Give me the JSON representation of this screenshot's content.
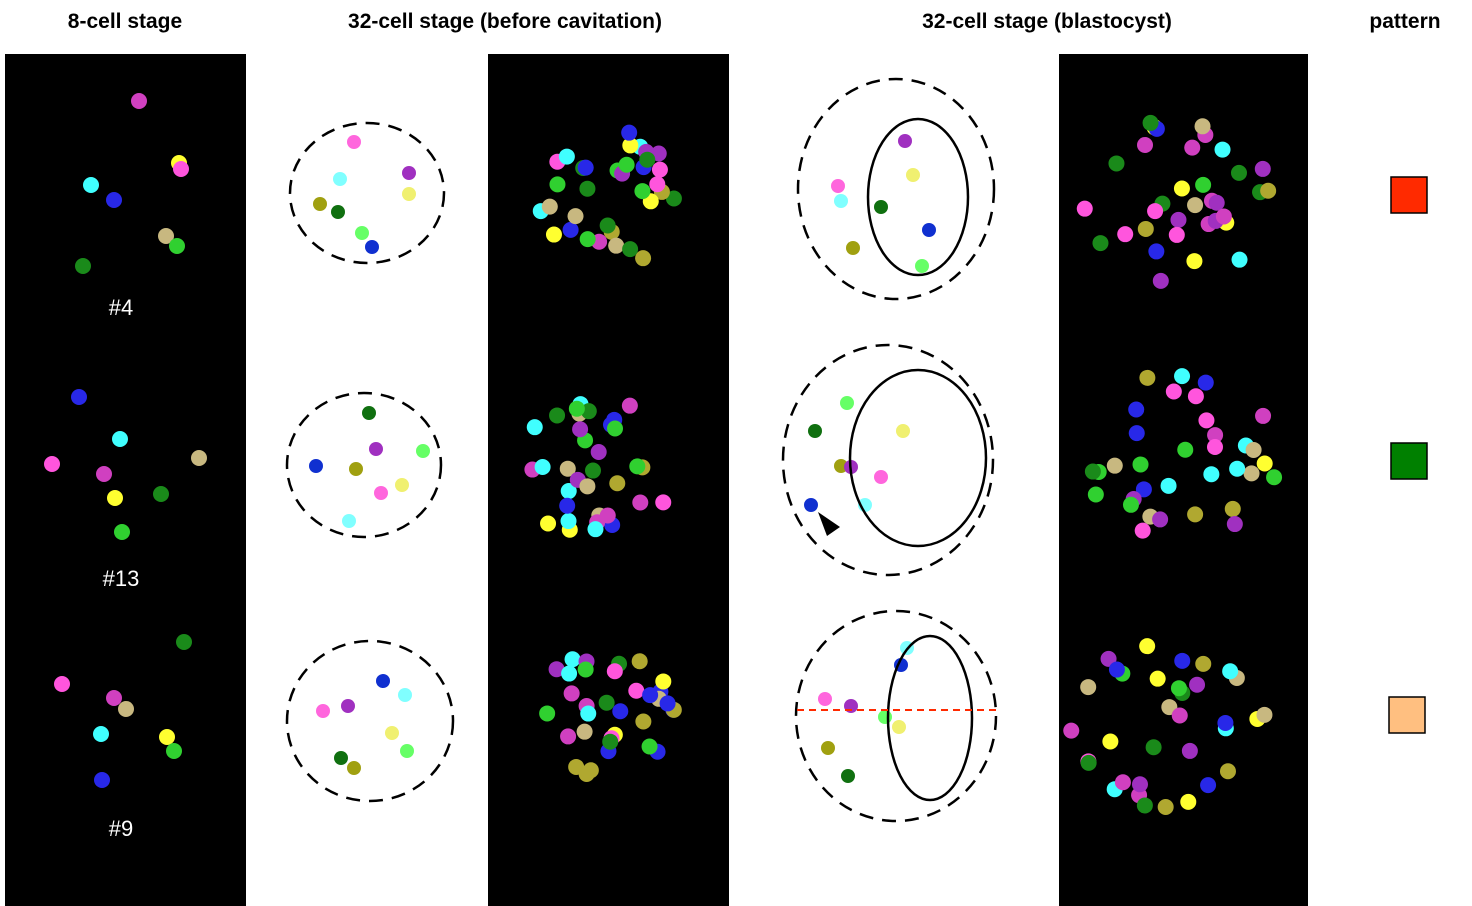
{
  "headers": [
    "8-cell stage",
    "32-cell stage (before cavitation)",
    "32-cell stage (blastocyst)",
    "pattern"
  ],
  "embryos": [
    "#4",
    "#13",
    "#9"
  ]
}
